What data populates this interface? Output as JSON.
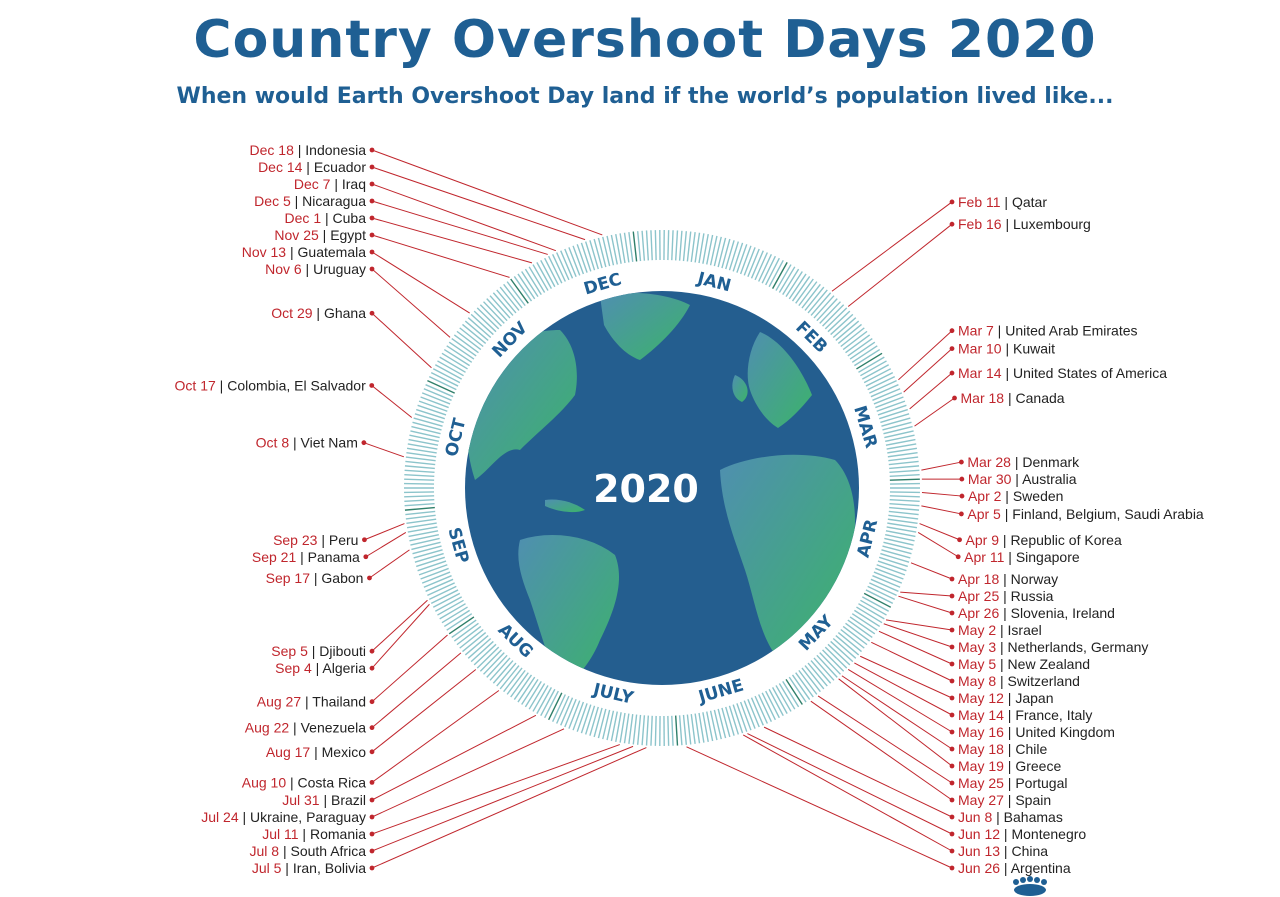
{
  "title": "Country Overshoot Days 2020",
  "subtitle": "When would Earth Overshoot Day land if the world’s population lived like...",
  "year_label": "2020",
  "months": [
    "JAN",
    "FEB",
    "MAR",
    "APR",
    "MAY",
    "JUNE",
    "JULY",
    "AUG",
    "SEP",
    "OCT",
    "NOV",
    "DEC"
  ],
  "colors": {
    "title": "#1f5f93",
    "date": "#c0262d",
    "ocean": "#245e8f",
    "land": "#3aa66a",
    "ring": "#4f9fae"
  },
  "logo_icon": "footprint-icon",
  "entries": [
    {
      "date": "Feb 11",
      "country": "Qatar",
      "day": 42
    },
    {
      "date": "Feb 16",
      "country": "Luxembourg",
      "day": 47
    },
    {
      "date": "Mar 7",
      "country": "United Arab Emirates",
      "day": 67
    },
    {
      "date": "Mar 10",
      "country": "Kuwait",
      "day": 70
    },
    {
      "date": "Mar 14",
      "country": "United States of America",
      "day": 74
    },
    {
      "date": "Mar 18",
      "country": "Canada",
      "day": 78
    },
    {
      "date": "Mar 28",
      "country": "Denmark",
      "day": 88
    },
    {
      "date": "Mar 30",
      "country": "Australia",
      "day": 90
    },
    {
      "date": "Apr 2",
      "country": "Sweden",
      "day": 93
    },
    {
      "date": "Apr 5",
      "country": "Finland, Belgium, Saudi Arabia",
      "day": 96
    },
    {
      "date": "Apr 9",
      "country": "Republic of Korea",
      "day": 100
    },
    {
      "date": "Apr 11",
      "country": "Singapore",
      "day": 102
    },
    {
      "date": "Apr 18",
      "country": "Norway",
      "day": 109
    },
    {
      "date": "Apr 25",
      "country": "Russia",
      "day": 116
    },
    {
      "date": "Apr 26",
      "country": "Slovenia, Ireland",
      "day": 117
    },
    {
      "date": "May 2",
      "country": "Israel",
      "day": 123
    },
    {
      "date": "May 3",
      "country": "Netherlands, Germany",
      "day": 124
    },
    {
      "date": "May 5",
      "country": "New Zealand",
      "day": 126
    },
    {
      "date": "May 8",
      "country": "Switzerland",
      "day": 129
    },
    {
      "date": "May 12",
      "country": "Japan",
      "day": 133
    },
    {
      "date": "May 14",
      "country": "France, Italy",
      "day": 135
    },
    {
      "date": "May 16",
      "country": "United Kingdom",
      "day": 137
    },
    {
      "date": "May 18",
      "country": "Chile",
      "day": 139
    },
    {
      "date": "May 19",
      "country": "Greece",
      "day": 140
    },
    {
      "date": "May 25",
      "country": "Portugal",
      "day": 146
    },
    {
      "date": "May 27",
      "country": "Spain",
      "day": 148
    },
    {
      "date": "Jun 8",
      "country": "Bahamas",
      "day": 160
    },
    {
      "date": "Jun 12",
      "country": "Montenegro",
      "day": 164
    },
    {
      "date": "Jun 13",
      "country": "China",
      "day": 165
    },
    {
      "date": "Jun 26",
      "country": "Argentina",
      "day": 178
    },
    {
      "date": "Jul 5",
      "country": "Iran, Bolivia",
      "day": 187
    },
    {
      "date": "Jul 8",
      "country": "South Africa",
      "day": 190
    },
    {
      "date": "Jul 11",
      "country": "Romania",
      "day": 193
    },
    {
      "date": "Jul 24",
      "country": "Ukraine, Paraguay",
      "day": 206
    },
    {
      "date": "Jul 31",
      "country": "Brazil",
      "day": 213
    },
    {
      "date": "Aug 10",
      "country": "Costa Rica",
      "day": 223
    },
    {
      "date": "Aug 17",
      "country": "Mexico",
      "day": 230
    },
    {
      "date": "Aug 22",
      "country": "Venezuela",
      "day": 235
    },
    {
      "date": "Aug 27",
      "country": "Thailand",
      "day": 240
    },
    {
      "date": "Sep 4",
      "country": "Algeria",
      "day": 248
    },
    {
      "date": "Sep 5",
      "country": "Djibouti",
      "day": 249
    },
    {
      "date": "Sep 17",
      "country": "Gabon",
      "day": 261
    },
    {
      "date": "Sep 21",
      "country": "Panama",
      "day": 265
    },
    {
      "date": "Sep 23",
      "country": "Peru",
      "day": 267
    },
    {
      "date": "Oct 8",
      "country": "Viet Nam",
      "day": 282
    },
    {
      "date": "Oct 17",
      "country": "Colombia, El Salvador",
      "day": 291
    },
    {
      "date": "Oct 29",
      "country": "Ghana",
      "day": 303
    },
    {
      "date": "Nov 6",
      "country": "Uruguay",
      "day": 311
    },
    {
      "date": "Nov 13",
      "country": "Guatemala",
      "day": 318
    },
    {
      "date": "Nov 25",
      "country": "Egypt",
      "day": 330
    },
    {
      "date": "Dec 1",
      "country": "Cuba",
      "day": 336
    },
    {
      "date": "Dec 5",
      "country": "Nicaragua",
      "day": 340
    },
    {
      "date": "Dec 7",
      "country": "Iraq",
      "day": 342
    },
    {
      "date": "Dec 14",
      "country": "Ecuador",
      "day": 349
    },
    {
      "date": "Dec 18",
      "country": "Indonesia",
      "day": 353
    }
  ]
}
